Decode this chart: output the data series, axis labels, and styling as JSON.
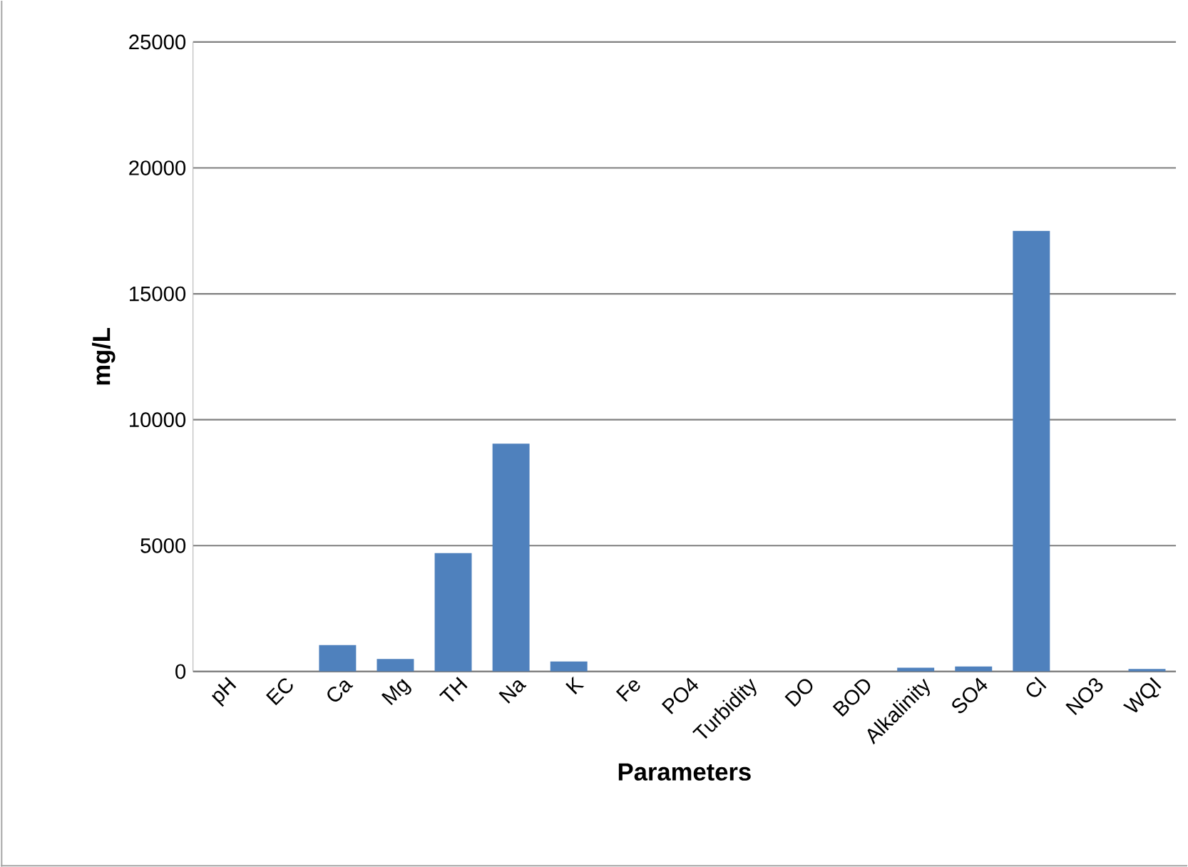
{
  "chart_data": {
    "type": "bar",
    "xlabel": "Parameters",
    "ylabel": "mg/L",
    "categories": [
      "pH",
      "EC",
      "Ca",
      "Mg",
      "TH",
      "Na",
      "K",
      "Fe",
      "PO4",
      "Turbidity",
      "DO",
      "BOD",
      "Alkalinity",
      "SO4",
      "Cl",
      "NO3",
      "WQI"
    ],
    "values": [
      0,
      0,
      1050,
      500,
      4700,
      9050,
      400,
      0,
      0,
      0,
      0,
      0,
      150,
      200,
      17500,
      0,
      100
    ],
    "color": "#4f81bd",
    "ylim": [
      0,
      25000
    ],
    "yticks": [
      0,
      5000,
      10000,
      15000,
      20000,
      25000
    ],
    "grid": "y"
  }
}
